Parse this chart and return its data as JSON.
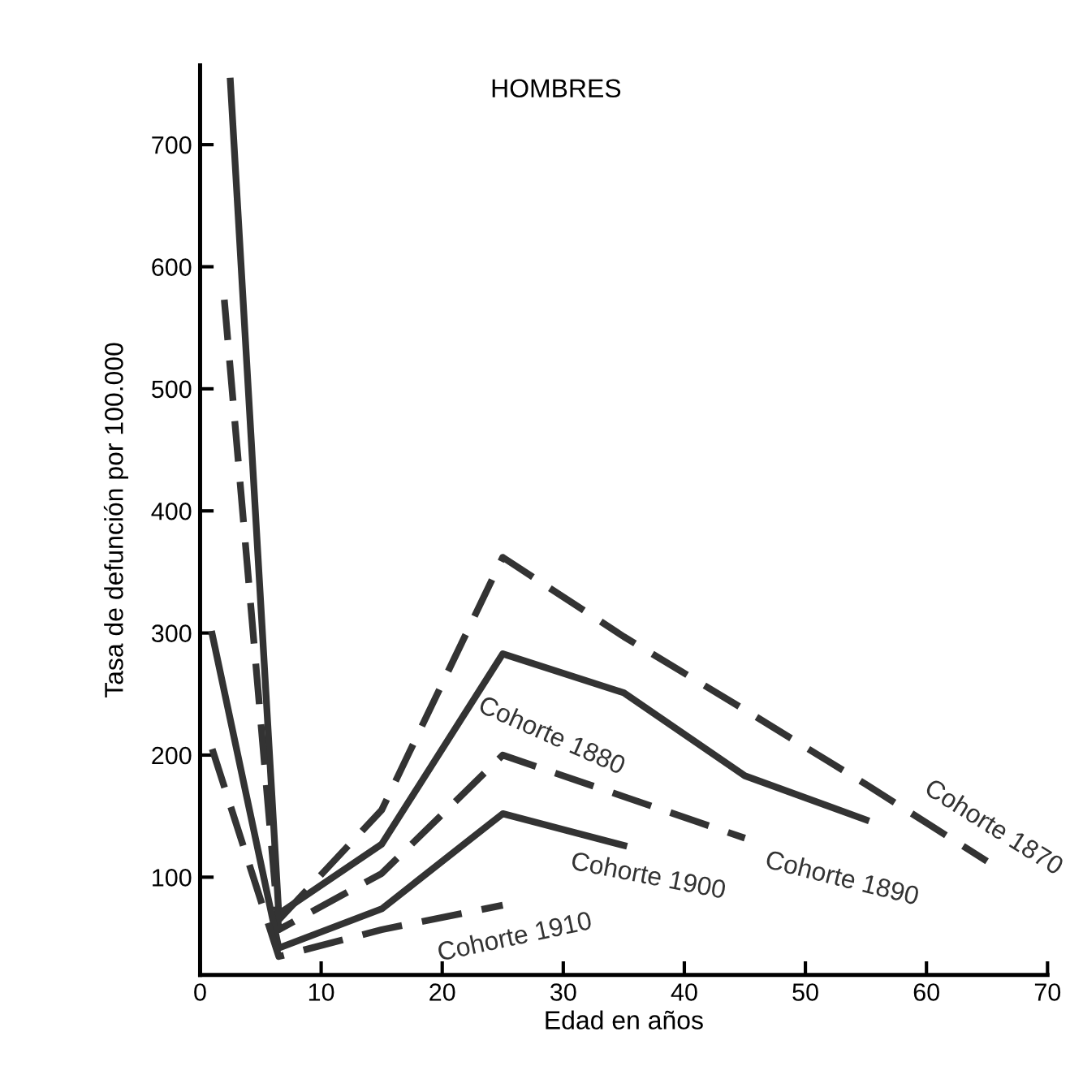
{
  "chart_data": {
    "type": "line",
    "title": "HOMBRES",
    "xlabel": "Edad en años",
    "ylabel": "Tasa de defunción por 100.000",
    "xlim": [
      0,
      70
    ],
    "xticks": [
      0,
      10,
      20,
      30,
      40,
      50,
      60,
      70
    ],
    "ylim": [
      20,
      765
    ],
    "yticks": [
      100,
      200,
      300,
      400,
      500,
      600,
      700
    ],
    "grid": false,
    "marker": "none",
    "series": [
      {
        "name": "Cohorte 1870",
        "color": "#333333",
        "line_style": "dashed",
        "x": [
          6.5,
          15,
          25,
          35,
          45,
          55,
          65
        ],
        "values": [
          65,
          155,
          362,
          297,
          237,
          176,
          113
        ]
      },
      {
        "name": "Cohorte 1880",
        "color": "#333333",
        "line_style": "solid",
        "x": [
          2.5,
          6.5,
          15,
          25,
          35,
          45,
          55
        ],
        "values": [
          752,
          70,
          127,
          283,
          251,
          183,
          147
        ]
      },
      {
        "name": "Cohorte 1890",
        "color": "#333333",
        "line_style": "dashed",
        "x": [
          2,
          6.5,
          15,
          25,
          35,
          45
        ],
        "values": [
          573,
          57,
          103,
          200,
          166,
          132
        ]
      },
      {
        "name": "Cohorte 1900",
        "color": "#333333",
        "line_style": "solid",
        "x": [
          1,
          6.5,
          15,
          25,
          35
        ],
        "values": [
          299,
          42,
          74,
          152,
          126
        ]
      },
      {
        "name": "Cohorte 1910",
        "color": "#333333",
        "line_style": "dashed",
        "x": [
          1,
          6.5,
          15,
          25
        ],
        "values": [
          205,
          35,
          57,
          77
        ]
      }
    ]
  }
}
